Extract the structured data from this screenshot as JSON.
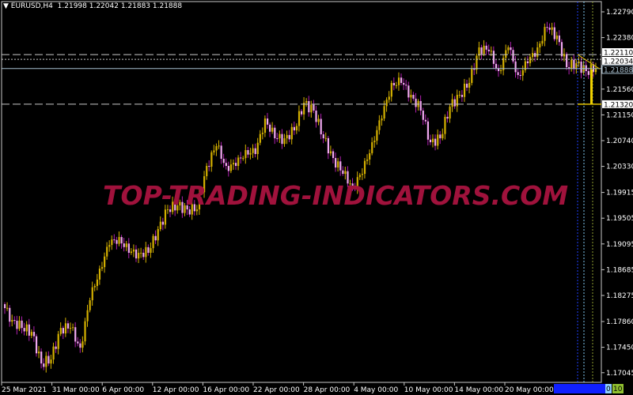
{
  "header": {
    "symbol": "EURUSD,H4",
    "ohlc": "1.21998 1.22042 1.21883 1.21888",
    "menu_icon": "triangle-down-icon"
  },
  "watermark": "TOP-TRADING-INDICATORS.COM",
  "colors": {
    "bull": "#d4b000",
    "bear_body": "#f0a8f0",
    "bear_wick": "#b020b0",
    "watermark": "#a0123c",
    "background": "#000000"
  },
  "chart_data": {
    "type": "candlestick",
    "title": "EURUSD,H4",
    "closes_approx": [
      1.18136,
      1.17884,
      1.17758,
      1.17695,
      1.17192,
      1.17255,
      1.17758,
      1.17758,
      1.17443,
      1.18198,
      1.18702,
      1.19079,
      1.19205,
      1.18954,
      1.18954,
      1.18954,
      1.19331,
      1.19645,
      1.19708,
      1.19645,
      1.19645,
      1.20337,
      1.20651,
      1.20337,
      1.20337,
      1.20589,
      1.20526,
      1.21092,
      1.20777,
      1.20777,
      1.20903,
      1.21343,
      1.21218,
      1.20777,
      1.20463,
      1.20211,
      1.20022,
      1.20211,
      1.20714,
      1.21092,
      1.21658,
      1.21658,
      1.21469,
      1.21218,
      1.20714,
      1.20777,
      1.2128,
      1.21469,
      1.21658,
      1.22224,
      1.22161,
      1.21847,
      1.22224,
      1.21784,
      1.21972,
      1.22224,
      1.22538,
      1.22413,
      1.21909,
      1.21972,
      1.21847,
      1.21888
    ],
    "ylim": [
      1.1695,
      1.229
    ],
    "y_ticks": [
      "1.22790",
      "1.22380",
      "1.21560",
      "1.21150",
      "1.20740",
      "1.20330",
      "1.19915",
      "1.19505",
      "1.19095",
      "1.18685",
      "1.18275",
      "1.17860",
      "1.17450",
      "1.17045"
    ],
    "x_ticks": [
      "25 Mar 2021",
      "31 Mar 00:00",
      "6 Apr 00:00",
      "12 Apr 00:00",
      "16 Apr 00:00",
      "22 Apr 00:00",
      "28 Apr 00:00",
      "4 May 00:00",
      "10 May 00:00",
      "14 May 00:00",
      "20 May 00:00"
    ],
    "levels": [
      {
        "price": 1.2211,
        "label": "1.22110",
        "style": "dashed"
      },
      {
        "price": 1.22034,
        "label": "1.22034",
        "style": "dotted"
      },
      {
        "price": 1.21888,
        "label": "1.21888",
        "style": "solid"
      },
      {
        "price": 1.2132,
        "label": "1.21320",
        "style": "dashed"
      }
    ],
    "grid": false
  },
  "footer": {
    "zero_label": "0",
    "ten_label": "10"
  }
}
